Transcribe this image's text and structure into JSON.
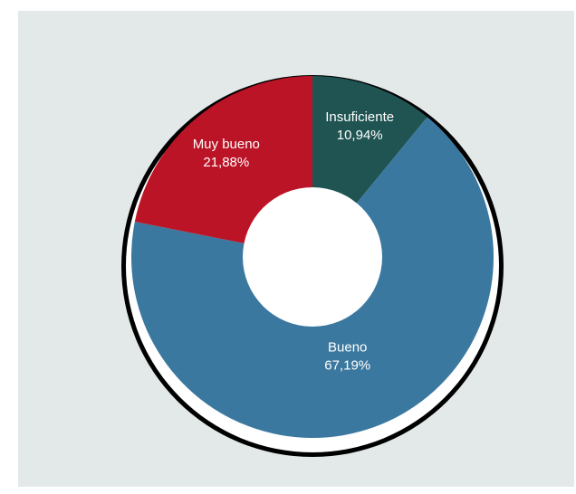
{
  "chart_data": {
    "type": "pie",
    "style": "donut",
    "title": "",
    "slices": [
      {
        "label": "Insuficiente",
        "value": 10.94,
        "value_label": "10,94%",
        "color": "#1f5452"
      },
      {
        "label": "Bueno",
        "value": 67.19,
        "value_label": "67,19%",
        "color": "#3b789f"
      },
      {
        "label": "Muy bueno",
        "value": 21.88,
        "value_label": "21,88%",
        "color": "#bb1426"
      }
    ],
    "start_angle": "12 o'clock",
    "direction": "clockwise",
    "legend": "none",
    "background_color": "#e2e9e8"
  }
}
